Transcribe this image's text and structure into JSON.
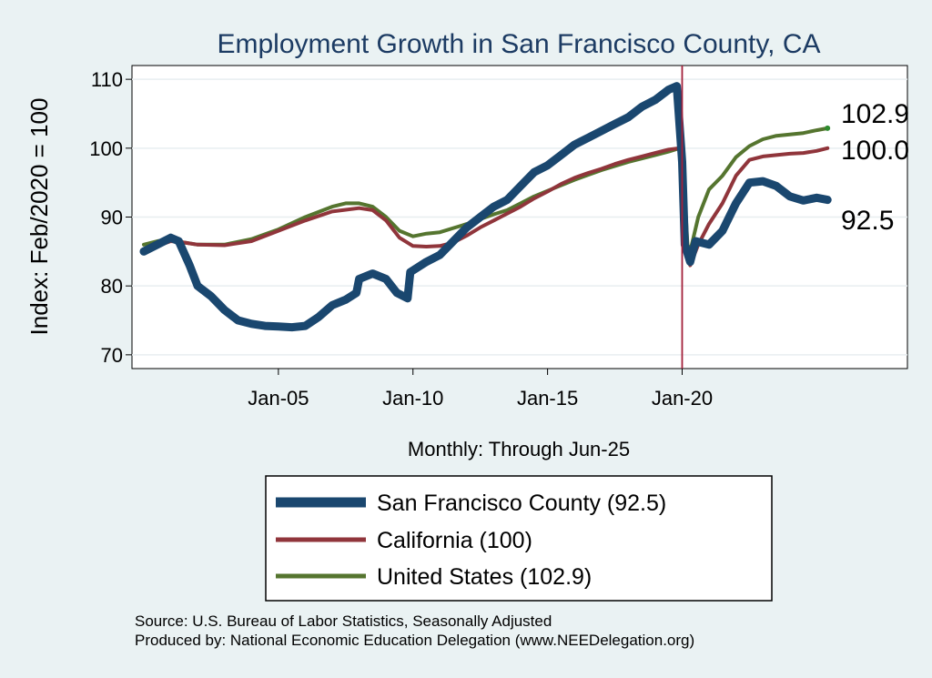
{
  "chart_data": {
    "type": "line",
    "title": "Employment Growth in San Francisco  County, CA",
    "ylabel": "Index: Feb/2020 = 100",
    "xlabel": "Monthly: Through Jun-25",
    "ylim": [
      68,
      112
    ],
    "yticks": [
      70,
      80,
      90,
      100,
      110
    ],
    "xlim": [
      2000.0,
      2025.8
    ],
    "xticks": [
      {
        "value": 2005.0,
        "label": "Jan-05"
      },
      {
        "value": 2010.0,
        "label": "Jan-10"
      },
      {
        "value": 2015.0,
        "label": "Jan-15"
      },
      {
        "value": 2020.0,
        "label": "Jan-20"
      }
    ],
    "vline": 2020.0,
    "grid": true,
    "legend_position": "bottom",
    "series": [
      {
        "name": "San Francisco  County",
        "legend": "San Francisco  County (92.5)",
        "end_label": "92.5",
        "color": "#1a476f",
        "points": [
          [
            2000.0,
            85
          ],
          [
            2000.5,
            86
          ],
          [
            2001.0,
            87
          ],
          [
            2001.3,
            86.5
          ],
          [
            2001.7,
            83
          ],
          [
            2002.0,
            80
          ],
          [
            2002.5,
            78.5
          ],
          [
            2003.0,
            76.5
          ],
          [
            2003.5,
            75
          ],
          [
            2004.0,
            74.5
          ],
          [
            2004.5,
            74.2
          ],
          [
            2005.0,
            74.1
          ],
          [
            2005.5,
            74
          ],
          [
            2006.0,
            74.2
          ],
          [
            2006.5,
            75.5
          ],
          [
            2007.0,
            77.2
          ],
          [
            2007.5,
            78
          ],
          [
            2007.9,
            79
          ],
          [
            2008.0,
            81
          ],
          [
            2008.5,
            81.8
          ],
          [
            2009.0,
            81
          ],
          [
            2009.4,
            79
          ],
          [
            2009.8,
            78.2
          ],
          [
            2009.9,
            82
          ],
          [
            2010.5,
            83.5
          ],
          [
            2011.0,
            84.5
          ],
          [
            2011.5,
            86.5
          ],
          [
            2012.0,
            88.5
          ],
          [
            2012.5,
            90
          ],
          [
            2013.0,
            91.5
          ],
          [
            2013.5,
            92.5
          ],
          [
            2014.0,
            94.5
          ],
          [
            2014.5,
            96.5
          ],
          [
            2015.0,
            97.5
          ],
          [
            2015.5,
            99
          ],
          [
            2016.0,
            100.5
          ],
          [
            2016.5,
            101.5
          ],
          [
            2017.0,
            102.5
          ],
          [
            2017.5,
            103.5
          ],
          [
            2018.0,
            104.5
          ],
          [
            2018.5,
            106
          ],
          [
            2019.0,
            107
          ],
          [
            2019.5,
            108.5
          ],
          [
            2019.8,
            109
          ],
          [
            2020.0,
            98
          ],
          [
            2020.1,
            86
          ],
          [
            2020.3,
            83.5
          ],
          [
            2020.5,
            86.5
          ],
          [
            2021.0,
            86
          ],
          [
            2021.5,
            88
          ],
          [
            2022.0,
            92
          ],
          [
            2022.5,
            95
          ],
          [
            2023.0,
            95.2
          ],
          [
            2023.5,
            94.5
          ],
          [
            2024.0,
            93
          ],
          [
            2024.5,
            92.4
          ],
          [
            2025.0,
            92.8
          ],
          [
            2025.4,
            92.5
          ]
        ]
      },
      {
        "name": "California",
        "legend": "California (100)",
        "end_label": "100.0",
        "color": "#90353b",
        "points": [
          [
            2000.0,
            84.8
          ],
          [
            2000.5,
            85.8
          ],
          [
            2001.0,
            86.5
          ],
          [
            2001.5,
            86.3
          ],
          [
            2002.0,
            86
          ],
          [
            2003.0,
            85.9
          ],
          [
            2004.0,
            86.5
          ],
          [
            2005.0,
            88
          ],
          [
            2006.0,
            89.5
          ],
          [
            2007.0,
            90.8
          ],
          [
            2008.0,
            91.3
          ],
          [
            2008.5,
            91
          ],
          [
            2009.0,
            89.5
          ],
          [
            2009.5,
            87
          ],
          [
            2010.0,
            85.8
          ],
          [
            2010.5,
            85.7
          ],
          [
            2011.0,
            85.8
          ],
          [
            2011.5,
            86.3
          ],
          [
            2012.0,
            87.3
          ],
          [
            2012.5,
            88.5
          ],
          [
            2013.0,
            89.5
          ],
          [
            2013.5,
            90.5
          ],
          [
            2014.0,
            91.5
          ],
          [
            2014.5,
            92.7
          ],
          [
            2015.0,
            93.7
          ],
          [
            2015.5,
            94.8
          ],
          [
            2016.0,
            95.7
          ],
          [
            2016.5,
            96.4
          ],
          [
            2017.0,
            97
          ],
          [
            2017.5,
            97.7
          ],
          [
            2018.0,
            98.3
          ],
          [
            2018.5,
            98.8
          ],
          [
            2019.0,
            99.3
          ],
          [
            2019.5,
            99.8
          ],
          [
            2019.9,
            100
          ],
          [
            2020.0,
            99
          ],
          [
            2020.2,
            84
          ],
          [
            2020.3,
            83
          ],
          [
            2020.6,
            86
          ],
          [
            2021.0,
            89
          ],
          [
            2021.5,
            92
          ],
          [
            2022.0,
            96
          ],
          [
            2022.5,
            98.3
          ],
          [
            2023.0,
            98.8
          ],
          [
            2023.5,
            99
          ],
          [
            2024.0,
            99.2
          ],
          [
            2024.5,
            99.3
          ],
          [
            2025.0,
            99.6
          ],
          [
            2025.4,
            100
          ]
        ]
      },
      {
        "name": "United States",
        "legend": "United States (102.9)",
        "end_label": "102.9",
        "color": "#55752f",
        "points": [
          [
            2000.0,
            86
          ],
          [
            2000.5,
            86.5
          ],
          [
            2001.0,
            86.8
          ],
          [
            2001.5,
            86.3
          ],
          [
            2002.0,
            86
          ],
          [
            2003.0,
            86
          ],
          [
            2004.0,
            86.8
          ],
          [
            2005.0,
            88.2
          ],
          [
            2006.0,
            90
          ],
          [
            2007.0,
            91.5
          ],
          [
            2007.5,
            92
          ],
          [
            2008.0,
            92
          ],
          [
            2008.5,
            91.5
          ],
          [
            2009.0,
            90
          ],
          [
            2009.5,
            88
          ],
          [
            2010.0,
            87.2
          ],
          [
            2010.5,
            87.6
          ],
          [
            2011.0,
            87.8
          ],
          [
            2011.5,
            88.4
          ],
          [
            2012.0,
            89
          ],
          [
            2012.5,
            89.7
          ],
          [
            2013.0,
            90.4
          ],
          [
            2013.5,
            91
          ],
          [
            2014.0,
            92
          ],
          [
            2014.5,
            93
          ],
          [
            2015.0,
            93.8
          ],
          [
            2015.5,
            94.6
          ],
          [
            2016.0,
            95.4
          ],
          [
            2016.5,
            96.1
          ],
          [
            2017.0,
            96.8
          ],
          [
            2017.5,
            97.4
          ],
          [
            2018.0,
            98
          ],
          [
            2018.5,
            98.5
          ],
          [
            2019.0,
            99
          ],
          [
            2019.5,
            99.5
          ],
          [
            2019.9,
            100
          ],
          [
            2020.0,
            99.5
          ],
          [
            2020.2,
            86
          ],
          [
            2020.3,
            85
          ],
          [
            2020.6,
            90
          ],
          [
            2021.0,
            94
          ],
          [
            2021.5,
            96
          ],
          [
            2022.0,
            98.7
          ],
          [
            2022.5,
            100.3
          ],
          [
            2023.0,
            101.3
          ],
          [
            2023.5,
            101.8
          ],
          [
            2024.0,
            102
          ],
          [
            2024.5,
            102.2
          ],
          [
            2025.0,
            102.6
          ],
          [
            2025.4,
            102.9
          ]
        ]
      }
    ]
  },
  "source_line": "Source: U.S. Bureau of Labor Statistics, Seasonally Adjusted",
  "produced_line": "Produced by: National Economic Education Delegation (www.NEEDelegation.org)",
  "colors": {
    "background": "#eaf2f3",
    "plot_background": "#ffffff",
    "gridline": "#e8eef0",
    "vline": "#a3203a",
    "title": "#1c3b63"
  }
}
